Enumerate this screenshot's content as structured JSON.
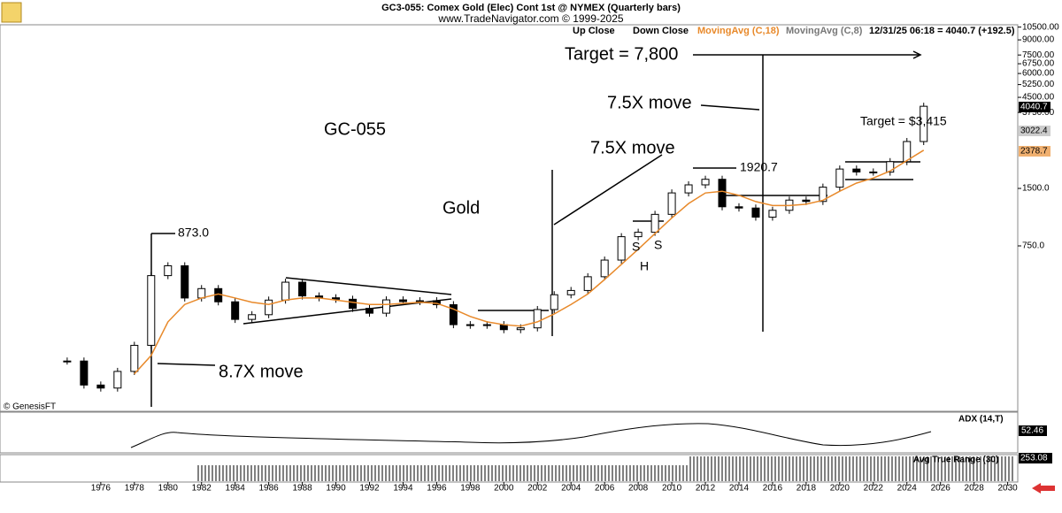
{
  "chart_data": {
    "type": "candlestick",
    "title": "GC3-055:  Comex Gold (Elec) Cont 1st @ NYMEX  (Quarterly bars)",
    "subtitle": "www.TradeNavigator.com © 1999-2025",
    "legend": [
      "Up Close",
      "Down Close",
      "MovingAvg (C,18)",
      "MovingAvg (C,8)",
      "12/31/25 06:18 = 4040.7 (+192.5)"
    ],
    "copyright": "© GenesisFT",
    "log_scale": true,
    "x": [
      1974,
      1975,
      1976,
      1977,
      1978,
      1979,
      1980,
      1981,
      1982,
      1983,
      1984,
      1985,
      1986,
      1987,
      1988,
      1989,
      1990,
      1991,
      1992,
      1993,
      1994,
      1995,
      1996,
      1997,
      1998,
      1999,
      2000,
      2001,
      2002,
      2003,
      2004,
      2005,
      2006,
      2007,
      2008,
      2009,
      2010,
      2011,
      2012,
      2013,
      2014,
      2015,
      2016,
      2017,
      2018,
      2019,
      2020,
      2021,
      2022,
      2023,
      2024,
      2025
    ],
    "series": [
      {
        "name": "Close",
        "color": "#000000",
        "values": [
          187,
          140,
          135,
          165,
          226,
          524,
          590,
          400,
          448,
          382,
          309,
          327,
          390,
          484,
          410,
          401,
          394,
          353,
          333,
          391,
          383,
          387,
          369,
          290,
          288,
          290,
          273,
          279,
          348,
          416,
          438,
          517,
          632,
          838,
          884,
          1097,
          1421,
          1566,
          1675,
          1202,
          1184,
          1061,
          1152,
          1303,
          1282,
          1523,
          1895,
          1829,
          1826,
          2072,
          2641,
          4040.7
        ]
      },
      {
        "name": "MovingAvg (C,18)",
        "color": "#e8892a",
        "values": [
          null,
          null,
          null,
          null,
          160,
          200,
          300,
          370,
          400,
          420,
          400,
          380,
          370,
          390,
          400,
          400,
          390,
          380,
          370,
          370,
          375,
          380,
          375,
          350,
          320,
          300,
          290,
          285,
          300,
          330,
          370,
          420,
          500,
          600,
          720,
          870,
          1050,
          1250,
          1420,
          1450,
          1380,
          1280,
          1220,
          1220,
          1240,
          1300,
          1450,
          1600,
          1700,
          1850,
          2100,
          2378.7
        ]
      }
    ],
    "xlim": [
      1970,
      2030.6
    ],
    "xticks": [
      1976,
      1978,
      1980,
      1982,
      1984,
      1986,
      1988,
      1990,
      1992,
      1994,
      1996,
      1998,
      2000,
      2002,
      2004,
      2006,
      2008,
      2010,
      2012,
      2014,
      2016,
      2018,
      2020,
      2022,
      2024,
      2026,
      2028,
      2030
    ],
    "ylim": [
      102,
      10800
    ],
    "yticks": [
      {
        "value": 10500,
        "label": "10500.00"
      },
      {
        "value": 9000,
        "label": "9000.00"
      },
      {
        "value": 7500,
        "label": "7500.00"
      },
      {
        "value": 6750,
        "label": "6750.00"
      },
      {
        "value": 6000,
        "label": "6000.00"
      },
      {
        "value": 5250,
        "label": "5250.00"
      },
      {
        "value": 4500,
        "label": "4500.00"
      },
      {
        "value": 3750,
        "label": "3750.00"
      },
      {
        "value": 1500,
        "label": "1500.0"
      },
      {
        "value": 750,
        "label": "750.0"
      }
    ],
    "price_flags": [
      "4040.7",
      "3022.4",
      "2378.7"
    ],
    "annotations": [
      "Target = 7,800",
      "7.5X move",
      "GC-055",
      "7.5X move",
      "Gold",
      "873.0",
      "1920.7",
      "Target = $3,415",
      "S",
      "S",
      "H",
      "8.7X move"
    ],
    "panels": [
      {
        "label": "ADX (14,T)",
        "flag": "52.46"
      },
      {
        "label": "Avg True Range (30)",
        "flag": "253.08"
      }
    ]
  }
}
